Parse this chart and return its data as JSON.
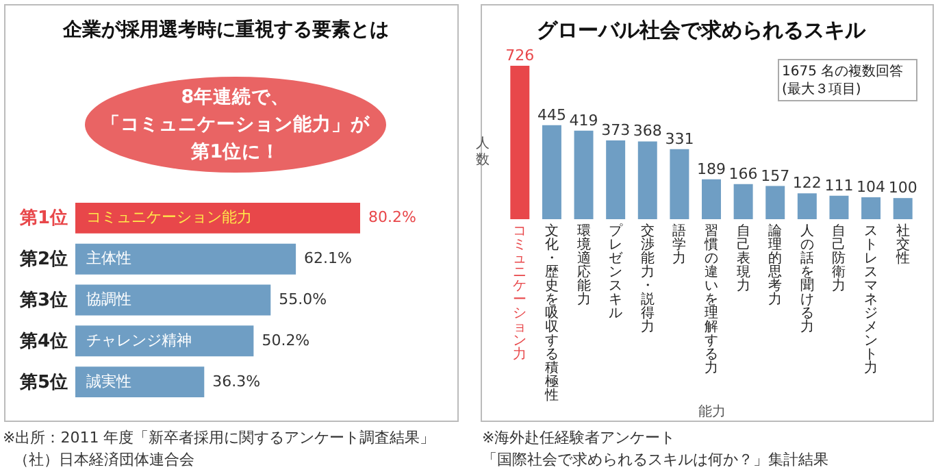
{
  "chart_data": [
    {
      "type": "bar",
      "orientation": "horizontal",
      "title": "企業が採用選考時に重視する要素とは",
      "categories": [
        "第1位",
        "第2位",
        "第3位",
        "第4位",
        "第5位"
      ],
      "values": [
        80.2,
        62.1,
        55.0,
        50.2,
        36.3
      ],
      "value_labels": [
        "80.2%",
        "62.1%",
        "55.0%",
        "50.2%",
        "36.3%"
      ],
      "colors": [
        "#e8474a",
        "#6f9ec4",
        "#6f9ec4",
        "#6f9ec4",
        "#6f9ec4"
      ],
      "annotations": [
        "8年連続で、",
        "「コミュニケーション能力」が",
        "第1位に！",
        {
          "text": "コミュニケーション能力",
          "y": "第1位"
        },
        {
          "text": "主体性",
          "y": "第2位"
        },
        {
          "text": "協調性",
          "y": "第3位"
        },
        {
          "text": "チャレンジ精神",
          "y": "第4位"
        },
        {
          "text": "誠実性",
          "y": "第5位"
        },
        "※出所：2011 年度「新卒者採用に関するアンケート調査結果」",
        "（社）日本経済団体連合会"
      ]
    },
    {
      "type": "bar",
      "title": "グローバル社会で求められるスキル",
      "xlabel": "能力",
      "ylabel": "人数",
      "categories": [
        "コミュニケーション力",
        "文化・歴史を吸収する積極性",
        "環境適応能力",
        "プレゼンスキル",
        "交渉能力・説得力",
        "語学力",
        "習慣の違いを理解する力",
        "自己表現力",
        "論理的思考力",
        "人の話を聞ける力",
        "自己防衛力",
        "ストレスマネジメント力",
        "社交性"
      ],
      "values": [
        726,
        445,
        419,
        373,
        368,
        331,
        189,
        166,
        157,
        122,
        111,
        104,
        100
      ],
      "colors": [
        "#e8474a",
        "#6f9ec4",
        "#6f9ec4",
        "#6f9ec4",
        "#6f9ec4",
        "#6f9ec4",
        "#6f9ec4",
        "#6f9ec4",
        "#6f9ec4",
        "#6f9ec4",
        "#6f9ec4",
        "#6f9ec4",
        "#6f9ec4"
      ],
      "data_labels": true,
      "annotations": [
        "1675 名の複数回答",
        "(最大３項目)",
        "※海外赴任経験者アンケート",
        "「国際社会で求められるスキルは何か？」集計結果"
      ]
    }
  ]
}
